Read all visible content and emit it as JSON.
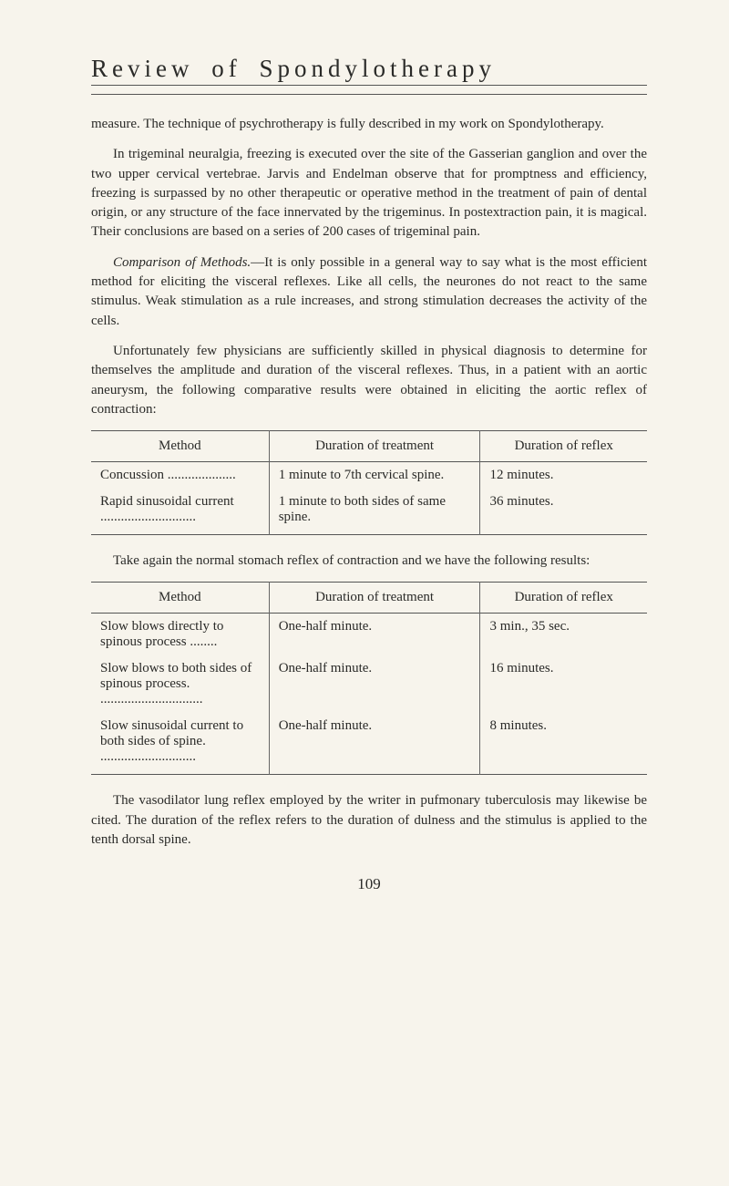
{
  "header": {
    "title": "Review of Spondylotherapy"
  },
  "paragraphs": {
    "p1": "measure. The technique of psychrotherapy is fully described in my work on Spondylotherapy.",
    "p2": "In trigeminal neuralgia, freezing is executed over the site of the Gasserian ganglion and over the two upper cervical vertebrae. Jarvis and Endelman observe that for promptness and efficiency, freezing is surpassed by no other therapeutic or operative method in the treatment of pain of dental origin, or any structure of the face innervated by the trigeminus. In postextraction pain, it is magical. Their conclusions are based on a series of 200 cases of trigeminal pain.",
    "p3a": "Comparison of Methods.",
    "p3b": "—It is only possible in a general way to say what is the most efficient method for eliciting the visceral reflexes. Like all cells, the neurones do not react to the same stimulus. Weak stimulation as a rule increases, and strong stimulation decreases the activity of the cells.",
    "p4": "Unfortunately few physicians are sufficiently skilled in physical diagnosis to determine for themselves the amplitude and duration of the visceral reflexes. Thus, in a patient with an aortic aneurysm, the following comparative results were obtained in eliciting the aortic reflex of contraction:",
    "p5": "Take again the normal stomach reflex of contraction and we have the following results:",
    "p6": "The vasodilator lung reflex employed by the writer in pufmonary tuberculosis may likewise be cited. The duration of the reflex refers to the duration of dulness and the stimulus is applied to the tenth dorsal spine."
  },
  "table1": {
    "headers": {
      "method": "Method",
      "treatment": "Duration of treatment",
      "reflex": "Duration of reflex"
    },
    "rows": [
      {
        "method": "Concussion ....................",
        "treatment": "1 minute to 7th cervical spine.",
        "reflex": "12 minutes."
      },
      {
        "method": "Rapid sinusoidal current ............................",
        "treatment": "1 minute to both sides of same spine.",
        "reflex": "36 minutes."
      }
    ]
  },
  "table2": {
    "headers": {
      "method": "Method",
      "treatment": "Duration of treatment",
      "reflex": "Duration of reflex"
    },
    "rows": [
      {
        "method": "Slow blows directly to spinous process ........",
        "treatment": "One-half minute.",
        "reflex": "3 min., 35 sec."
      },
      {
        "method": "Slow blows to both sides of spinous process. ..............................",
        "treatment": "One-half minute.",
        "reflex": "16 minutes."
      },
      {
        "method": "Slow sinusoidal current to both sides of spine. ............................",
        "treatment": "One-half minute.",
        "reflex": "8 minutes."
      }
    ]
  },
  "pageNumber": "109"
}
